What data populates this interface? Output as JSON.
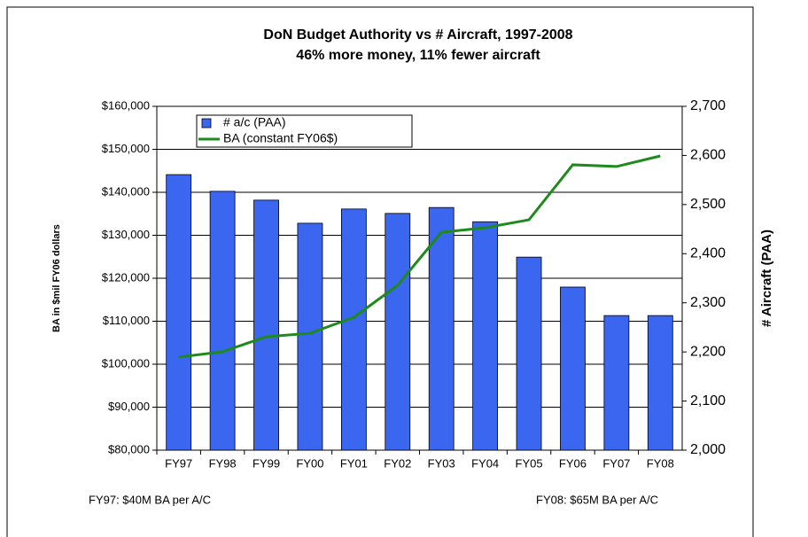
{
  "chart_data": {
    "type": "bar_line",
    "title": "DoN Budget Authority vs # Aircraft, 1997-2008",
    "subtitle": "46% more money, 11% fewer aircraft",
    "ylabel": "BA in $mil FY06 dollars",
    "y2label": "# Aircraft (PAA)",
    "categories": [
      "FY97",
      "FY98",
      "FY99",
      "FY00",
      "FY01",
      "FY02",
      "FY03",
      "FY04",
      "FY05",
      "FY06",
      "FY07",
      "FY08"
    ],
    "series": [
      {
        "name": "# a/c (PAA)",
        "type": "bar",
        "axis": "y2",
        "color": "#3b66f0",
        "values": [
          2561,
          2527,
          2509,
          2462,
          2491,
          2482,
          2494,
          2465,
          2393,
          2332,
          2274,
          2274
        ]
      },
      {
        "name": "BA (constant FY06$)",
        "type": "line",
        "axis": "y",
        "color": "#1e8a1e",
        "values": [
          101650,
          102900,
          106400,
          107200,
          110900,
          118350,
          130700,
          131750,
          133600,
          146400,
          146000,
          148450
        ]
      }
    ],
    "ylim": [
      80000,
      160000
    ],
    "yticks": [
      {
        "value": 80000,
        "label": "$80,000"
      },
      {
        "value": 90000,
        "label": "$90,000"
      },
      {
        "value": 100000,
        "label": "$100,000"
      },
      {
        "value": 110000,
        "label": "$110,000"
      },
      {
        "value": 120000,
        "label": "$120,000"
      },
      {
        "value": 130000,
        "label": "$130,000"
      },
      {
        "value": 140000,
        "label": "$140,000"
      },
      {
        "value": 150000,
        "label": "$150,000"
      },
      {
        "value": 160000,
        "label": "$160,000"
      }
    ],
    "y2lim": [
      2000,
      2700
    ],
    "y2ticks": [
      {
        "value": 2000,
        "label": "2,000"
      },
      {
        "value": 2100,
        "label": "2,100"
      },
      {
        "value": 2200,
        "label": "2,200"
      },
      {
        "value": 2300,
        "label": "2,300"
      },
      {
        "value": 2400,
        "label": "2,400"
      },
      {
        "value": 2500,
        "label": "2,500"
      },
      {
        "value": 2600,
        "label": "2,600"
      },
      {
        "value": 2700,
        "label": "2,700"
      }
    ],
    "grid": true,
    "legend": "top-left",
    "annotations": [
      "FY97: $40M BA per A/C",
      "FY08: $65M BA per A/C"
    ]
  }
}
